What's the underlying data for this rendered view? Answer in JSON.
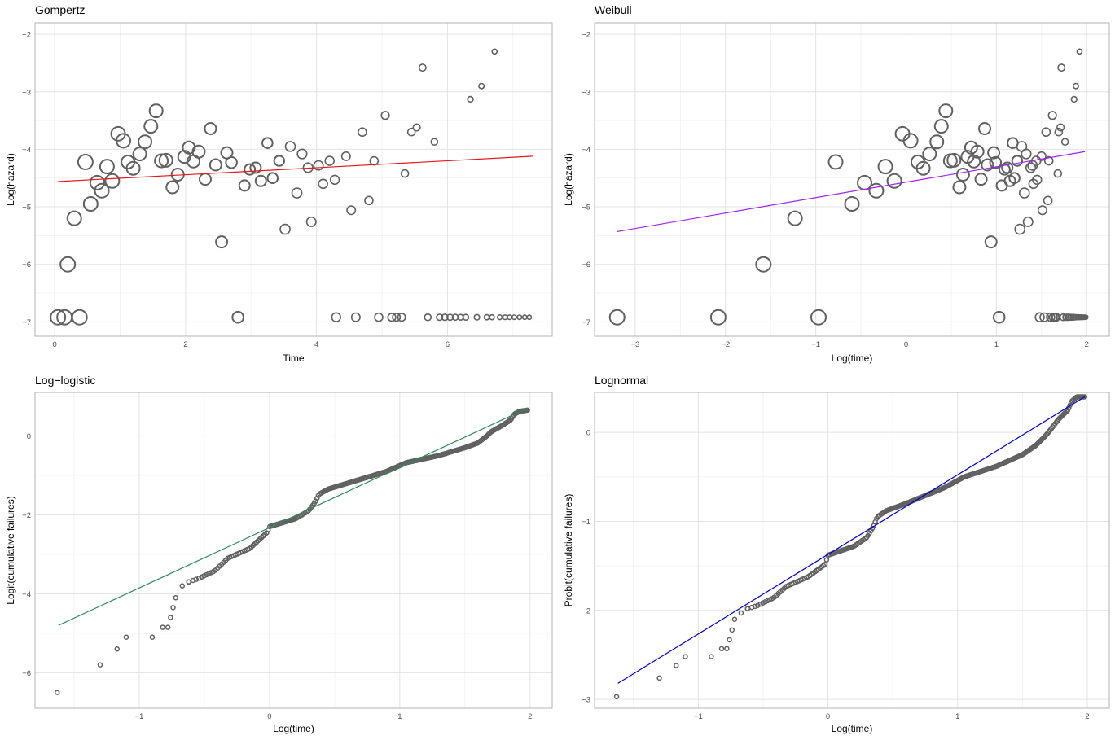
{
  "chart_data": [
    {
      "type": "scatter",
      "title": "Gompertz",
      "xlabel": "Time",
      "ylabel": "Log(hazard)",
      "xlim": [
        -0.3,
        7.6
      ],
      "ylim": [
        -7.25,
        -1.8
      ],
      "xticks": [
        0,
        2,
        4,
        6
      ],
      "yticks": [
        -7,
        -6,
        -5,
        -4,
        -3,
        -2
      ],
      "fit_line": {
        "color": "#e41a1c",
        "x": [
          0.05,
          7.3
        ],
        "y": [
          -4.56,
          -4.12
        ]
      },
      "points_note": "marker size proportional to number at risk",
      "points": [
        [
          0.05,
          -6.92,
          9
        ],
        [
          0.15,
          -6.92,
          9
        ],
        [
          0.38,
          -6.92,
          9
        ],
        [
          0.2,
          -6.0,
          9
        ],
        [
          0.3,
          -5.2,
          8.5
        ],
        [
          0.55,
          -4.95,
          8.5
        ],
        [
          0.47,
          -4.22,
          9
        ],
        [
          0.65,
          -4.58,
          8.5
        ],
        [
          0.72,
          -4.72,
          8.5
        ],
        [
          0.8,
          -4.3,
          8.5
        ],
        [
          0.88,
          -4.55,
          8.5
        ],
        [
          0.97,
          -3.73,
          8.5
        ],
        [
          1.05,
          -3.85,
          8.5
        ],
        [
          1.12,
          -4.22,
          8
        ],
        [
          1.2,
          -4.33,
          8
        ],
        [
          1.3,
          -4.08,
          8
        ],
        [
          1.38,
          -3.87,
          8
        ],
        [
          1.47,
          -3.6,
          8
        ],
        [
          1.55,
          -3.33,
          8
        ],
        [
          1.63,
          -4.2,
          8
        ],
        [
          1.7,
          -4.19,
          8
        ],
        [
          1.8,
          -4.66,
          7.5
        ],
        [
          1.88,
          -4.44,
          7.5
        ],
        [
          1.98,
          -4.13,
          7.5
        ],
        [
          2.05,
          -3.97,
          7.5
        ],
        [
          2.12,
          -4.21,
          7.5
        ],
        [
          2.2,
          -4.04,
          7.5
        ],
        [
          2.3,
          -4.52,
          7
        ],
        [
          2.38,
          -3.64,
          7
        ],
        [
          2.46,
          -4.27,
          7
        ],
        [
          2.55,
          -5.61,
          7
        ],
        [
          2.63,
          -4.06,
          7
        ],
        [
          2.7,
          -4.23,
          6.8
        ],
        [
          2.8,
          -6.92,
          6.8
        ],
        [
          2.9,
          -4.63,
          6.5
        ],
        [
          2.98,
          -4.35,
          6.5
        ],
        [
          3.07,
          -4.32,
          6.5
        ],
        [
          3.15,
          -4.55,
          6.5
        ],
        [
          3.25,
          -3.89,
          6.3
        ],
        [
          3.33,
          -4.5,
          6.3
        ],
        [
          3.43,
          -4.2,
          6.2
        ],
        [
          3.52,
          -5.39,
          6
        ],
        [
          3.6,
          -3.95,
          6
        ],
        [
          3.7,
          -4.76,
          6
        ],
        [
          3.78,
          -4.08,
          5.8
        ],
        [
          3.87,
          -4.32,
          5.8
        ],
        [
          3.92,
          -5.26,
          5.7
        ],
        [
          4.03,
          -4.28,
          5.7
        ],
        [
          4.1,
          -4.6,
          5.5
        ],
        [
          4.2,
          -4.2,
          5.5
        ],
        [
          4.28,
          -4.53,
          5.4
        ],
        [
          4.3,
          -6.92,
          5.4
        ],
        [
          4.45,
          -4.12,
          5.2
        ],
        [
          4.53,
          -5.06,
          5.2
        ],
        [
          4.6,
          -6.92,
          5.2
        ],
        [
          4.7,
          -3.7,
          5
        ],
        [
          4.8,
          -4.89,
          5
        ],
        [
          4.88,
          -4.2,
          5
        ],
        [
          4.95,
          -6.92,
          5
        ],
        [
          5.05,
          -3.41,
          4.8
        ],
        [
          5.15,
          -6.92,
          4.8
        ],
        [
          5.22,
          -6.92,
          4.7
        ],
        [
          5.3,
          -6.92,
          4.7
        ],
        [
          5.35,
          -4.42,
          4.5
        ],
        [
          5.45,
          -3.7,
          4.5
        ],
        [
          5.53,
          -3.62,
          4.3
        ],
        [
          5.62,
          -2.58,
          4.2
        ],
        [
          5.7,
          -6.92,
          4
        ],
        [
          5.8,
          -3.87,
          4
        ],
        [
          5.88,
          -6.92,
          3.8
        ],
        [
          5.96,
          -6.92,
          3.8
        ],
        [
          6.04,
          -6.92,
          3.7
        ],
        [
          6.12,
          -6.92,
          3.6
        ],
        [
          6.2,
          -6.92,
          3.5
        ],
        [
          6.28,
          -6.92,
          3.5
        ],
        [
          6.35,
          -3.13,
          3.4
        ],
        [
          6.45,
          -6.92,
          3.3
        ],
        [
          6.52,
          -2.9,
          3.2
        ],
        [
          6.6,
          -6.92,
          3.1
        ],
        [
          6.68,
          -6.92,
          3
        ],
        [
          6.72,
          -2.3,
          3
        ],
        [
          6.8,
          -6.92,
          2.9
        ],
        [
          6.88,
          -6.92,
          2.8
        ],
        [
          6.95,
          -6.92,
          2.8
        ],
        [
          7.02,
          -6.92,
          2.7
        ],
        [
          7.1,
          -6.92,
          2.7
        ],
        [
          7.18,
          -6.92,
          2.6
        ],
        [
          7.25,
          -6.92,
          2.6
        ]
      ]
    },
    {
      "type": "scatter",
      "title": "Weibull",
      "xlabel": "Log(time)",
      "ylabel": "Log(hazard)",
      "xlim": [
        -3.45,
        2.25
      ],
      "ylim": [
        -7.25,
        -1.8
      ],
      "xticks": [
        -3,
        -2,
        -1,
        0,
        1,
        2
      ],
      "yticks": [
        -7,
        -6,
        -5,
        -4,
        -3,
        -2
      ],
      "fit_line": {
        "color": "#a020f0",
        "x": [
          -3.2,
          1.98
        ],
        "y": [
          -5.43,
          -4.04
        ]
      },
      "points_note": "marker size proportional to number at risk",
      "points": [
        [
          -3.2,
          -6.92,
          9
        ],
        [
          -2.08,
          -6.92,
          9
        ],
        [
          -0.97,
          -6.92,
          9
        ],
        [
          -1.58,
          -6.0,
          9
        ],
        [
          -1.23,
          -5.2,
          8.5
        ],
        [
          -0.78,
          -4.22,
          8.5
        ],
        [
          -0.6,
          -4.95,
          8.5
        ],
        [
          -0.46,
          -4.58,
          8.5
        ],
        [
          -0.33,
          -4.72,
          8.5
        ],
        [
          -0.23,
          -4.3,
          8.5
        ],
        [
          -0.13,
          -4.55,
          8.5
        ],
        [
          -0.04,
          -3.73,
          8.5
        ],
        [
          0.05,
          -3.85,
          8.5
        ],
        [
          0.13,
          -4.22,
          8
        ],
        [
          0.19,
          -4.33,
          8
        ],
        [
          0.26,
          -4.08,
          8
        ],
        [
          0.34,
          -3.87,
          8
        ],
        [
          0.39,
          -3.6,
          8
        ],
        [
          0.44,
          -3.33,
          8
        ],
        [
          0.49,
          -4.2,
          8
        ],
        [
          0.53,
          -4.19,
          8
        ],
        [
          0.59,
          -4.66,
          7.5
        ],
        [
          0.63,
          -4.44,
          7.5
        ],
        [
          0.68,
          -4.13,
          7.5
        ],
        [
          0.72,
          -3.97,
          7.5
        ],
        [
          0.75,
          -4.21,
          7.5
        ],
        [
          0.79,
          -4.04,
          7.5
        ],
        [
          0.83,
          -4.52,
          7
        ],
        [
          0.87,
          -3.64,
          7
        ],
        [
          0.9,
          -4.27,
          7
        ],
        [
          0.94,
          -5.61,
          7
        ],
        [
          0.97,
          -4.06,
          7
        ],
        [
          0.99,
          -4.23,
          6.8
        ],
        [
          1.03,
          -6.92,
          6.8
        ],
        [
          1.06,
          -4.63,
          6.5
        ],
        [
          1.09,
          -4.35,
          6.5
        ],
        [
          1.12,
          -4.32,
          6.5
        ],
        [
          1.15,
          -4.55,
          6.5
        ],
        [
          1.18,
          -3.89,
          6.3
        ],
        [
          1.2,
          -4.5,
          6.3
        ],
        [
          1.23,
          -4.2,
          6.2
        ],
        [
          1.26,
          -5.39,
          6
        ],
        [
          1.28,
          -3.95,
          6
        ],
        [
          1.31,
          -4.76,
          6
        ],
        [
          1.33,
          -4.08,
          5.8
        ],
        [
          1.35,
          -5.26,
          5.7
        ],
        [
          1.38,
          -4.32,
          5.8
        ],
        [
          1.4,
          -4.28,
          5.7
        ],
        [
          1.41,
          -4.6,
          5.5
        ],
        [
          1.44,
          -4.2,
          5.5
        ],
        [
          1.45,
          -4.53,
          5.4
        ],
        [
          1.48,
          -6.92,
          5.4
        ],
        [
          1.5,
          -4.12,
          5.2
        ],
        [
          1.51,
          -5.06,
          5.2
        ],
        [
          1.53,
          -6.92,
          5.2
        ],
        [
          1.55,
          -3.7,
          5
        ],
        [
          1.57,
          -4.89,
          5
        ],
        [
          1.58,
          -4.2,
          5
        ],
        [
          1.6,
          -6.92,
          5
        ],
        [
          1.62,
          -3.41,
          4.8
        ],
        [
          1.63,
          -6.92,
          4.8
        ],
        [
          1.65,
          -6.92,
          4.7
        ],
        [
          1.66,
          -6.92,
          4.7
        ],
        [
          1.68,
          -4.42,
          4.5
        ],
        [
          1.69,
          -3.7,
          4.5
        ],
        [
          1.71,
          -3.62,
          4.3
        ],
        [
          1.72,
          -2.58,
          4.2
        ],
        [
          1.74,
          -6.92,
          4
        ],
        [
          1.76,
          -3.87,
          4
        ],
        [
          1.77,
          -6.92,
          3.8
        ],
        [
          1.79,
          -6.92,
          3.8
        ],
        [
          1.8,
          -6.92,
          3.7
        ],
        [
          1.82,
          -6.92,
          3.6
        ],
        [
          1.83,
          -6.92,
          3.5
        ],
        [
          1.85,
          -6.92,
          3.5
        ],
        [
          1.86,
          -3.13,
          3.4
        ],
        [
          1.87,
          -6.92,
          3.3
        ],
        [
          1.88,
          -2.9,
          3.2
        ],
        [
          1.9,
          -6.92,
          3.1
        ],
        [
          1.91,
          -6.92,
          3
        ],
        [
          1.92,
          -2.3,
          3
        ],
        [
          1.93,
          -6.92,
          2.9
        ],
        [
          1.94,
          -6.92,
          2.8
        ],
        [
          1.95,
          -6.92,
          2.8
        ],
        [
          1.96,
          -6.92,
          2.7
        ],
        [
          1.97,
          -6.92,
          2.7
        ],
        [
          1.98,
          -6.92,
          2.6
        ],
        [
          1.99,
          -6.92,
          2.6
        ]
      ]
    },
    {
      "type": "scatter",
      "title": "Log−logistic",
      "xlabel": "Log(time)",
      "ylabel": "Logit(cumulative failures)",
      "xlim": [
        -1.8,
        2.17
      ],
      "ylim": [
        -6.9,
        1.1
      ],
      "xticks": [
        -1,
        0,
        1,
        2
      ],
      "yticks": [
        -6,
        -4,
        -2,
        0
      ],
      "fit_line": {
        "color": "#2e8b57",
        "x": [
          -1.62,
          1.98
        ],
        "y": [
          -4.8,
          0.7
        ]
      },
      "points_note": "individual points of the empirical cumulative distribution",
      "anchors": [
        [
          -1.63,
          -6.5
        ],
        [
          -1.3,
          -5.8
        ],
        [
          -1.17,
          -5.4
        ],
        [
          -1.1,
          -5.1
        ],
        [
          -0.9,
          -5.1
        ],
        [
          -0.82,
          -4.85
        ],
        [
          -0.78,
          -4.85
        ],
        [
          -0.76,
          -4.6
        ],
        [
          -0.74,
          -4.35
        ],
        [
          -0.72,
          -4.1
        ],
        [
          -0.67,
          -3.8
        ],
        [
          -0.62,
          -3.7
        ],
        [
          -0.55,
          -3.62
        ],
        [
          -0.42,
          -3.42
        ],
        [
          -0.32,
          -3.1
        ],
        [
          -0.15,
          -2.85
        ],
        [
          -0.02,
          -2.45
        ],
        [
          0.0,
          -2.3
        ],
        [
          0.2,
          -2.1
        ],
        [
          0.3,
          -1.9
        ],
        [
          0.35,
          -1.68
        ],
        [
          0.38,
          -1.48
        ],
        [
          0.45,
          -1.35
        ],
        [
          0.6,
          -1.2
        ],
        [
          0.9,
          -0.9
        ],
        [
          1.05,
          -0.68
        ],
        [
          1.3,
          -0.5
        ],
        [
          1.5,
          -0.3
        ],
        [
          1.6,
          -0.18
        ],
        [
          1.67,
          0.0
        ],
        [
          1.7,
          0.1
        ],
        [
          1.78,
          0.25
        ],
        [
          1.85,
          0.4
        ],
        [
          1.88,
          0.55
        ],
        [
          1.92,
          0.62
        ],
        [
          1.98,
          0.65
        ]
      ],
      "n_points": 240
    },
    {
      "type": "scatter",
      "title": "Lognormal",
      "xlabel": "Log(time)",
      "ylabel": "Probit(cumulative failures)",
      "xlim": [
        -1.8,
        2.17
      ],
      "ylim": [
        -3.1,
        0.45
      ],
      "xticks": [
        -1,
        0,
        1,
        2
      ],
      "yticks": [
        -3,
        -2,
        -1,
        0
      ],
      "fit_line": {
        "color": "#0000cd",
        "x": [
          -1.62,
          1.98
        ],
        "y": [
          -2.82,
          0.4
        ]
      },
      "points_note": "individual points of the empirical cumulative distribution",
      "anchors": [
        [
          -1.63,
          -2.97
        ],
        [
          -1.3,
          -2.76
        ],
        [
          -1.17,
          -2.62
        ],
        [
          -1.1,
          -2.52
        ],
        [
          -0.9,
          -2.52
        ],
        [
          -0.82,
          -2.43
        ],
        [
          -0.78,
          -2.43
        ],
        [
          -0.76,
          -2.33
        ],
        [
          -0.74,
          -2.22
        ],
        [
          -0.72,
          -2.1
        ],
        [
          -0.67,
          -2.03
        ],
        [
          -0.62,
          -1.98
        ],
        [
          -0.55,
          -1.95
        ],
        [
          -0.42,
          -1.86
        ],
        [
          -0.32,
          -1.73
        ],
        [
          -0.15,
          -1.62
        ],
        [
          -0.02,
          -1.48
        ],
        [
          0.0,
          -1.38
        ],
        [
          0.2,
          -1.28
        ],
        [
          0.3,
          -1.18
        ],
        [
          0.35,
          -1.06
        ],
        [
          0.38,
          -0.95
        ],
        [
          0.45,
          -0.88
        ],
        [
          0.6,
          -0.8
        ],
        [
          0.9,
          -0.62
        ],
        [
          1.05,
          -0.5
        ],
        [
          1.3,
          -0.38
        ],
        [
          1.5,
          -0.25
        ],
        [
          1.6,
          -0.15
        ],
        [
          1.67,
          -0.05
        ],
        [
          1.7,
          0.0
        ],
        [
          1.78,
          0.15
        ],
        [
          1.85,
          0.25
        ],
        [
          1.88,
          0.35
        ],
        [
          1.92,
          0.4
        ],
        [
          1.98,
          0.4
        ]
      ],
      "n_points": 240
    }
  ]
}
